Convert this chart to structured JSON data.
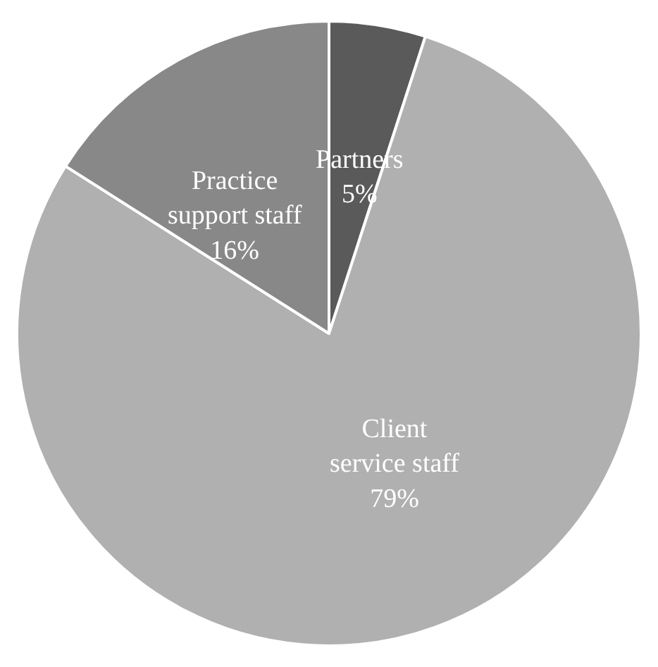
{
  "chart_data": {
    "type": "pie",
    "categories": [
      "Partners",
      "Client service staff",
      "Practice support staff"
    ],
    "values": [
      5,
      79,
      16
    ],
    "colors": [
      "#5a5a5a",
      "#b0b0b0",
      "#888888"
    ],
    "value_labels": [
      "5%",
      "79%",
      "16%"
    ],
    "legend": false
  }
}
